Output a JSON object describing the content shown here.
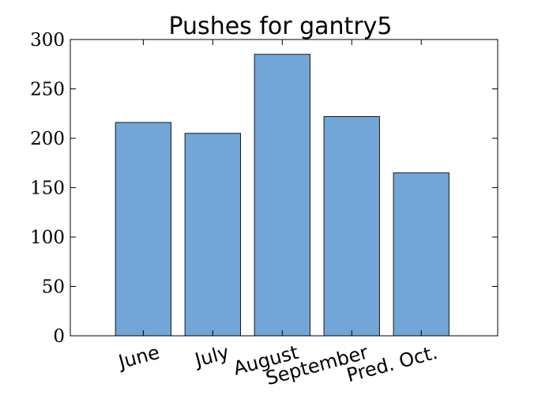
{
  "chart_data": {
    "type": "bar",
    "title": "Pushes for gantry5",
    "xlabel": "",
    "ylabel": "",
    "categories": [
      "June",
      "July",
      "August",
      "September",
      "Pred. Oct."
    ],
    "values": [
      216,
      205,
      285,
      222,
      165
    ],
    "ylim": [
      0,
      300
    ],
    "yticks": [
      0,
      50,
      100,
      150,
      200,
      250,
      300
    ],
    "grid": false,
    "legend": "none",
    "bar_color": "#72a6d6",
    "bar_edge_color": "#1a1a1a"
  }
}
